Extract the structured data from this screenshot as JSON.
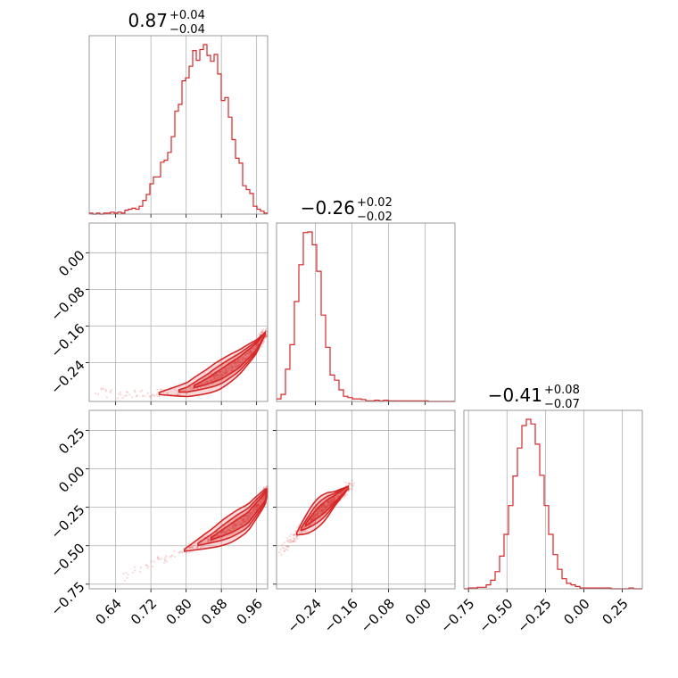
{
  "chart_data": {
    "type": "corner",
    "color": "#d62728",
    "grid": true,
    "parameters": [
      {
        "range": [
          0.58,
          0.985
        ],
        "ticks": [
          0.64,
          0.72,
          0.8,
          0.88,
          0.96
        ],
        "tick_labels": [
          "0.64",
          "0.72",
          "0.80",
          "0.88",
          "0.96"
        ]
      },
      {
        "range": [
          -0.325,
          0.065
        ],
        "ticks": [
          -0.24,
          -0.16,
          -0.08,
          0.0
        ],
        "tick_labels": [
          "−0.24",
          "−0.16",
          "−0.08",
          "0.00"
        ],
        "y_tick_labels": [
          "0.00",
          "−0.08",
          "−0.16",
          "−0.24"
        ]
      },
      {
        "range": [
          -0.78,
          0.38
        ],
        "ticks": [
          -0.75,
          -0.5,
          -0.25,
          0.0,
          0.25
        ],
        "tick_labels": [
          "−0.75",
          "−0.50",
          "−0.25",
          "0.00",
          "0.25"
        ]
      }
    ],
    "titles": [
      {
        "median": "0.87",
        "plus": "+0.04",
        "minus": "−0.04"
      },
      {
        "median": "−0.26",
        "plus": "+0.02",
        "minus": "−0.02"
      },
      {
        "median": "−0.41",
        "plus": "+0.08",
        "minus": "−0.07"
      }
    ],
    "histograms": [
      {
        "bins": [
          0.58,
          0.9858
        ],
        "counts": [
          1,
          0,
          1,
          0,
          1,
          1,
          2,
          1,
          2,
          1,
          4,
          5,
          6,
          5,
          8,
          14,
          20,
          31,
          38,
          38,
          53,
          55,
          63,
          79,
          105,
          112,
          136,
          139,
          151,
          167,
          157,
          168,
          173,
          162,
          156,
          163,
          143,
          116,
          119,
          99,
          76,
          57,
          52,
          29,
          25,
          21,
          8,
          5,
          3,
          1
        ]
      },
      {
        "bins": [
          -0.325,
          0.065
        ],
        "counts": [
          4,
          11,
          50,
          88,
          155,
          212,
          262,
          263,
          243,
          202,
          134,
          84,
          41,
          33,
          18,
          8,
          6,
          4,
          4,
          3,
          1,
          1,
          2,
          1,
          2,
          1,
          1,
          1,
          1,
          1,
          1,
          1,
          1,
          1,
          0,
          0,
          0,
          0,
          0,
          0
        ]
      },
      {
        "bins": [
          -0.78,
          0.38
        ],
        "counts": [
          0,
          1,
          1,
          2,
          2,
          5,
          11,
          22,
          42,
          70,
          107,
          145,
          181,
          210,
          218,
          212,
          186,
          146,
          107,
          70,
          44,
          25,
          13,
          7,
          5,
          3,
          1,
          1,
          1,
          1,
          1,
          1,
          1,
          0,
          0,
          0,
          0,
          1,
          0,
          0
        ]
      }
    ],
    "scatter_relations": {
      "p2_vs_p1": {
        "samples_along": [
          [
            0.59,
            -0.305
          ],
          [
            0.64,
            -0.308
          ],
          [
            0.72,
            -0.31
          ],
          [
            0.8,
            -0.3
          ],
          [
            0.85,
            -0.28
          ],
          [
            0.88,
            -0.265
          ],
          [
            0.92,
            -0.24
          ],
          [
            0.96,
            -0.205
          ],
          [
            0.985,
            -0.168
          ]
        ]
      },
      "p3_vs_p1": {
        "samples_along": [
          [
            0.6,
            -0.78
          ],
          [
            0.7,
            -0.64
          ],
          [
            0.8,
            -0.525
          ],
          [
            0.86,
            -0.45
          ],
          [
            0.9,
            -0.39
          ],
          [
            0.94,
            -0.32
          ],
          [
            0.98,
            -0.18
          ],
          [
            0.985,
            -0.13
          ]
        ]
      },
      "p3_vs_p2": {
        "samples_along": [
          [
            -0.32,
            -0.55
          ],
          [
            -0.3,
            -0.48
          ],
          [
            -0.28,
            -0.42
          ],
          [
            -0.26,
            -0.36
          ],
          [
            -0.24,
            -0.3
          ],
          [
            -0.22,
            -0.25
          ],
          [
            -0.2,
            -0.2
          ],
          [
            -0.16,
            -0.1
          ]
        ]
      }
    }
  }
}
